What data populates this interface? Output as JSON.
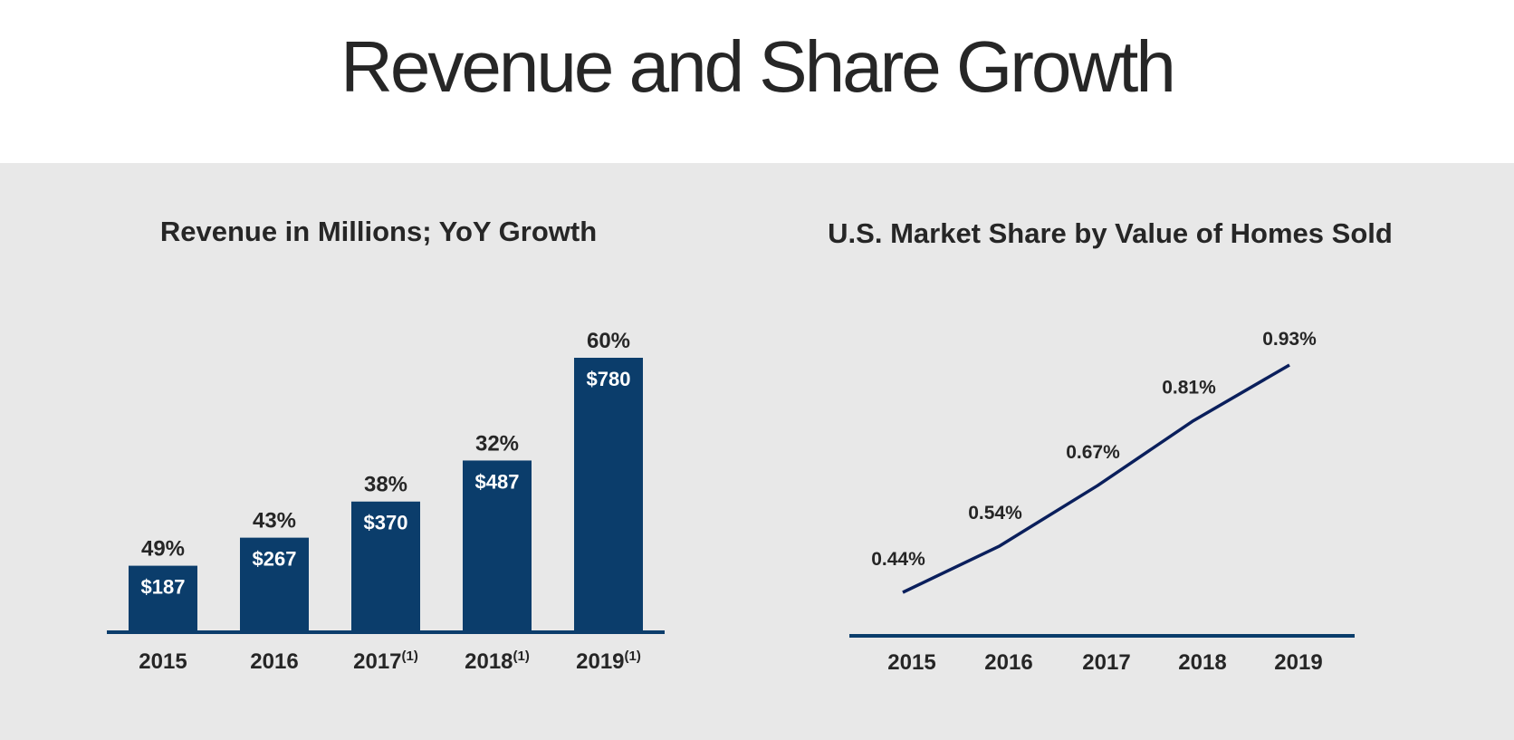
{
  "page": {
    "title": "Revenue and Share Growth"
  },
  "colors": {
    "bar": "#0b3d6b",
    "axis": "#0b3d6b",
    "line": "#0a1f5c",
    "text": "#262626",
    "background": "#e8e8e8",
    "header_background": "#ffffff"
  },
  "chart_data": [
    {
      "type": "bar",
      "title": "Revenue in Millions; YoY Growth",
      "categories": [
        "2015",
        "2016",
        "2017",
        "2018",
        "2019"
      ],
      "category_footnotes": [
        "",
        "",
        "(1)",
        "(1)",
        "(1)"
      ],
      "series": [
        {
          "name": "Revenue ($M)",
          "values": [
            187,
            267,
            370,
            487,
            780
          ]
        }
      ],
      "value_labels": [
        "$187",
        "$267",
        "$370",
        "$487",
        "$780"
      ],
      "growth_labels": [
        "49%",
        "43%",
        "38%",
        "32%",
        "60%"
      ],
      "growth_values": [
        49,
        43,
        38,
        32,
        60
      ],
      "xlabel": "",
      "ylabel": "",
      "ylim": [
        0,
        780
      ],
      "grid": false,
      "legend": "none"
    },
    {
      "type": "line",
      "title": "U.S. Market Share by Value of Homes Sold",
      "categories": [
        "2015",
        "2016",
        "2017",
        "2018",
        "2019"
      ],
      "series": [
        {
          "name": "U.S. Market Share (%)",
          "values": [
            0.44,
            0.54,
            0.67,
            0.81,
            0.93
          ]
        }
      ],
      "point_labels": [
        "0.44%",
        "0.54%",
        "0.67%",
        "0.81%",
        "0.93%"
      ],
      "xlabel": "",
      "ylabel": "",
      "grid": false,
      "legend": "none"
    }
  ]
}
